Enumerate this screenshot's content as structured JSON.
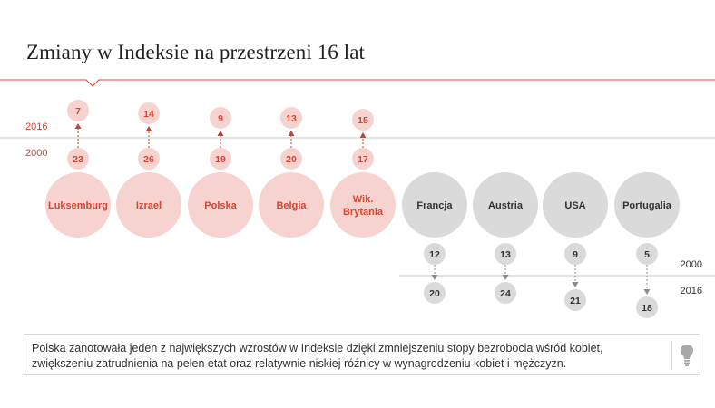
{
  "title": "Zmiany w Indeksie na przestrzeni 16 lat",
  "year_labels": {
    "top_later": "2016",
    "top_earlier": "2000",
    "bottom_earlier": "2000",
    "bottom_later": "2016"
  },
  "countries": [
    {
      "name": "Luksemburg",
      "rank_2000": 23,
      "rank_2016": 7,
      "direction": "up"
    },
    {
      "name": "Izrael",
      "rank_2000": 26,
      "rank_2016": 14,
      "direction": "up"
    },
    {
      "name": "Polska",
      "rank_2000": 19,
      "rank_2016": 9,
      "direction": "up"
    },
    {
      "name": "Belgia",
      "rank_2000": 20,
      "rank_2016": 13,
      "direction": "up"
    },
    {
      "name": "Wik.\nBrytania",
      "rank_2000": 17,
      "rank_2016": 15,
      "direction": "up"
    },
    {
      "name": "Francja",
      "rank_2000": 12,
      "rank_2016": 20,
      "direction": "down"
    },
    {
      "name": "Austria",
      "rank_2000": 13,
      "rank_2016": 24,
      "direction": "down"
    },
    {
      "name": "USA",
      "rank_2000": 9,
      "rank_2016": 21,
      "direction": "down"
    },
    {
      "name": "Portugalia",
      "rank_2000": 5,
      "rank_2016": 18,
      "direction": "down"
    }
  ],
  "note": "Polska zanotowała jeden z największych wzrostów w Indeksie dzięki zmniejszeniu stopy bezrobocia wśród kobiet, zwiększeniu zatrudnienia na pełen etat oraz relatywnie niskiej różnicy w wynagrodzeniu kobiet i mężczyzn.",
  "icons": {
    "note": "lightbulb-icon"
  },
  "colors": {
    "up_circle": "#f7d3d0",
    "up_text": "#d9442f",
    "up_arrow": "#c8402f",
    "down_circle": "#dadada",
    "down_text": "#333333",
    "down_arrow": "#8c8c8c",
    "accent_line": "#d9442f",
    "rule": "#d6d6d6"
  }
}
